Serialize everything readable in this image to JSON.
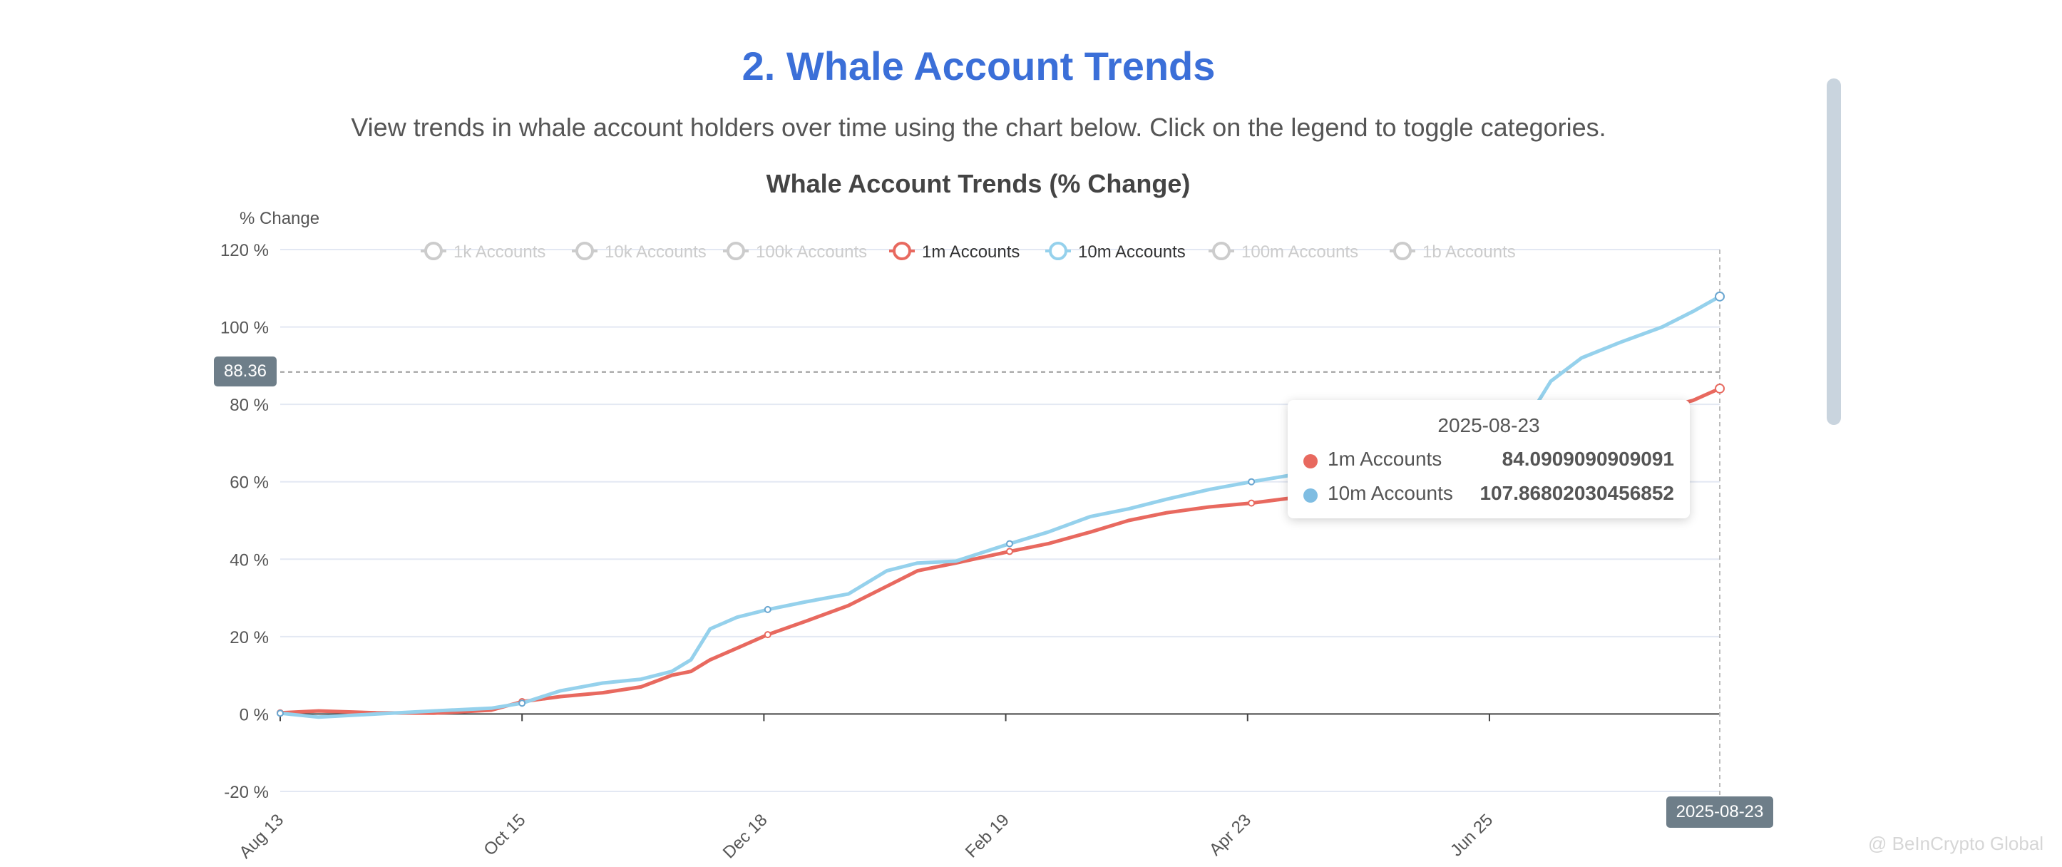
{
  "section": {
    "title": "2. Whale Account Trends",
    "description": "View trends in whale account holders over time using the chart below. Click on the legend to toggle categories."
  },
  "watermark": "@ BeInCrypto Global",
  "tooltip": {
    "date": "2025-08-23",
    "rows": [
      {
        "name": "1m Accounts",
        "value": "84.0909090909091",
        "color": "#e8695f"
      },
      {
        "name": "10m Accounts",
        "value": "107.86802030456852",
        "color": "#7fbde2"
      }
    ]
  },
  "crosshair": {
    "y_value_label": "88.36",
    "x_value_label": "2025-08-23"
  },
  "colors": {
    "inactive": "#cccccc",
    "axis": "#444444",
    "grid": "#e3e8f3",
    "red": "#e8695f",
    "blue": "#95d1ec",
    "blue_dark": "#6aa6d0"
  },
  "chart_data": {
    "type": "line",
    "title": "Whale Account Trends (% Change)",
    "ylabel": "% Change",
    "xlabel": "",
    "ylim": [
      -20,
      120
    ],
    "yticks": [
      -20,
      0,
      20,
      40,
      60,
      80,
      100,
      120
    ],
    "ytick_labels": [
      "-20 %",
      "0 %",
      "20 %",
      "40 %",
      "60 %",
      "80 %",
      "100 %",
      "120 %"
    ],
    "xtick_labels": [
      "Aug 13",
      "Oct 15",
      "Dec 18",
      "Feb 19",
      "Apr 23",
      "Jun 25"
    ],
    "grid": true,
    "legend_position": "top",
    "legend": [
      {
        "name": "1k Accounts",
        "active": false
      },
      {
        "name": "10k Accounts",
        "active": false
      },
      {
        "name": "100k Accounts",
        "active": false
      },
      {
        "name": "1m Accounts",
        "active": true,
        "color": "#e8695f"
      },
      {
        "name": "10m Accounts",
        "active": true,
        "color": "#95d1ec"
      },
      {
        "name": "100m Accounts",
        "active": false
      },
      {
        "name": "1b Accounts",
        "active": false
      }
    ],
    "x": [
      "2024-08-13",
      "2024-08-23",
      "2024-09-07",
      "2024-09-22",
      "2024-10-07",
      "2024-10-15",
      "2024-10-25",
      "2024-11-05",
      "2024-11-15",
      "2024-11-23",
      "2024-11-28",
      "2024-12-03",
      "2024-12-10",
      "2024-12-18",
      "2024-12-28",
      "2025-01-08",
      "2025-01-18",
      "2025-01-26",
      "2025-02-05",
      "2025-02-19",
      "2025-03-01",
      "2025-03-12",
      "2025-03-22",
      "2025-04-01",
      "2025-04-12",
      "2025-04-23",
      "2025-05-05",
      "2025-05-18",
      "2025-06-01",
      "2025-06-15",
      "2025-06-25",
      "2025-07-05",
      "2025-07-10",
      "2025-07-18",
      "2025-07-28",
      "2025-08-08",
      "2025-08-16",
      "2025-08-23"
    ],
    "series": [
      {
        "name": "1m Accounts",
        "color": "#e8695f",
        "values": [
          0.3,
          0.8,
          0.3,
          0.2,
          1.0,
          3.2,
          4.5,
          5.5,
          7,
          10,
          11,
          14,
          17,
          20.5,
          24,
          28,
          33,
          37,
          39,
          42,
          44,
          47,
          50,
          52,
          53.5,
          54.5,
          56,
          58,
          60,
          62,
          64,
          66,
          68,
          71,
          75,
          79,
          81,
          84.09
        ]
      },
      {
        "name": "10m Accounts",
        "color": "#95d1ec",
        "values": [
          0.2,
          -0.8,
          0,
          0.8,
          1.5,
          2.8,
          6,
          8,
          9,
          11,
          14,
          22,
          25,
          27,
          29,
          31,
          37,
          39,
          39.5,
          44,
          47,
          51,
          53,
          55.5,
          58,
          60,
          62,
          64,
          67,
          70,
          72,
          78,
          86,
          92,
          96,
          100,
          104,
          107.87
        ]
      }
    ]
  }
}
